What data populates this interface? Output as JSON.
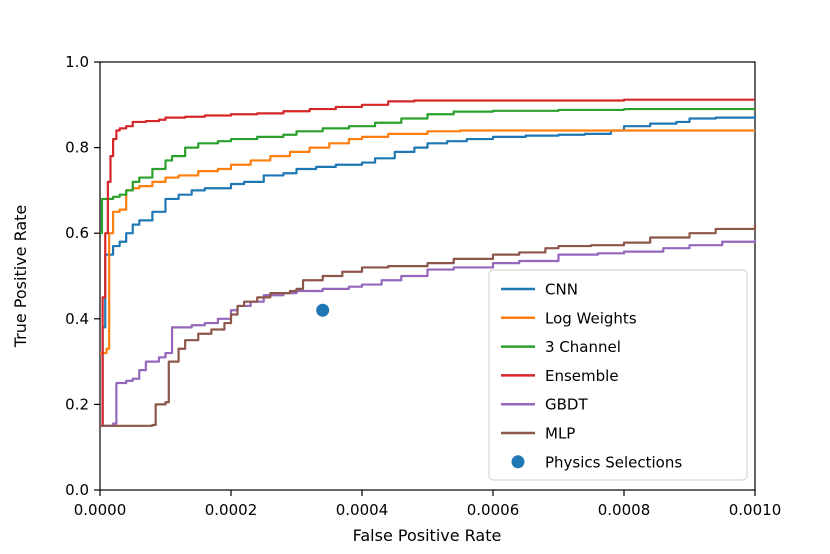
{
  "figure": {
    "background": "#ffffff"
  },
  "chart_data": {
    "type": "line",
    "title": "",
    "xlabel": "False Positive Rate",
    "ylabel": "True Positive Rate",
    "xlim": [
      0.0,
      0.001
    ],
    "ylim": [
      0.0,
      1.0
    ],
    "grid": false,
    "legend_position": "lower right",
    "xticks": {
      "values": [
        0.0,
        0.0002,
        0.0004,
        0.0006,
        0.0008,
        0.001
      ],
      "labels": [
        "0.0000",
        "0.0002",
        "0.0004",
        "0.0006",
        "0.0008",
        "0.0010"
      ]
    },
    "yticks": {
      "values": [
        0.0,
        0.2,
        0.4,
        0.6,
        0.8,
        1.0
      ],
      "labels": [
        "0.0",
        "0.2",
        "0.4",
        "0.6",
        "0.8",
        "1.0"
      ]
    },
    "series": [
      {
        "name": "CNN",
        "color": "#1f77b4",
        "step": true,
        "points": [
          [
            0,
            0.15
          ],
          [
            4e-06,
            0.38
          ],
          [
            8e-06,
            0.55
          ],
          [
            2e-05,
            0.57
          ],
          [
            3e-05,
            0.58
          ],
          [
            4e-05,
            0.6
          ],
          [
            5e-05,
            0.62
          ],
          [
            6e-05,
            0.63
          ],
          [
            8e-05,
            0.65
          ],
          [
            0.0001,
            0.68
          ],
          [
            0.00012,
            0.69
          ],
          [
            0.00014,
            0.7
          ],
          [
            0.00016,
            0.705
          ],
          [
            0.0002,
            0.715
          ],
          [
            0.00022,
            0.72
          ],
          [
            0.00025,
            0.735
          ],
          [
            0.00028,
            0.74
          ],
          [
            0.0003,
            0.75
          ],
          [
            0.00033,
            0.755
          ],
          [
            0.00036,
            0.76
          ],
          [
            0.0004,
            0.765
          ],
          [
            0.00042,
            0.775
          ],
          [
            0.00045,
            0.79
          ],
          [
            0.00048,
            0.8
          ],
          [
            0.0005,
            0.81
          ],
          [
            0.00053,
            0.815
          ],
          [
            0.00056,
            0.82
          ],
          [
            0.0006,
            0.825
          ],
          [
            0.00065,
            0.828
          ],
          [
            0.0007,
            0.83
          ],
          [
            0.00074,
            0.832
          ],
          [
            0.00078,
            0.84
          ],
          [
            0.0008,
            0.85
          ],
          [
            0.00084,
            0.856
          ],
          [
            0.00088,
            0.86
          ],
          [
            0.0009,
            0.868
          ],
          [
            0.00094,
            0.87
          ],
          [
            0.001,
            0.875
          ]
        ]
      },
      {
        "name": "Log Weights",
        "color": "#ff7f0e",
        "step": true,
        "points": [
          [
            0,
            0.32
          ],
          [
            1e-05,
            0.33
          ],
          [
            1.4e-05,
            0.6
          ],
          [
            2e-05,
            0.65
          ],
          [
            3e-05,
            0.655
          ],
          [
            4e-05,
            0.7
          ],
          [
            5e-05,
            0.705
          ],
          [
            6e-05,
            0.71
          ],
          [
            8e-05,
            0.72
          ],
          [
            0.0001,
            0.73
          ],
          [
            0.00012,
            0.735
          ],
          [
            0.00015,
            0.745
          ],
          [
            0.00018,
            0.75
          ],
          [
            0.0002,
            0.76
          ],
          [
            0.00023,
            0.77
          ],
          [
            0.00026,
            0.78
          ],
          [
            0.00029,
            0.79
          ],
          [
            0.00032,
            0.8
          ],
          [
            0.00035,
            0.81
          ],
          [
            0.00038,
            0.82
          ],
          [
            0.0004,
            0.825
          ],
          [
            0.00044,
            0.832
          ],
          [
            0.0005,
            0.838
          ],
          [
            0.00055,
            0.84
          ],
          [
            0.001,
            0.84
          ]
        ]
      },
      {
        "name": "3 Channel",
        "color": "#2ca02c",
        "step": true,
        "points": [
          [
            0,
            0.6
          ],
          [
            3e-06,
            0.68
          ],
          [
            2e-05,
            0.685
          ],
          [
            3e-05,
            0.69
          ],
          [
            4e-05,
            0.7
          ],
          [
            5e-05,
            0.72
          ],
          [
            6e-05,
            0.73
          ],
          [
            8e-05,
            0.75
          ],
          [
            0.0001,
            0.77
          ],
          [
            0.00011,
            0.78
          ],
          [
            0.00013,
            0.8
          ],
          [
            0.00015,
            0.81
          ],
          [
            0.00018,
            0.815
          ],
          [
            0.0002,
            0.82
          ],
          [
            0.00024,
            0.825
          ],
          [
            0.00028,
            0.83
          ],
          [
            0.0003,
            0.838
          ],
          [
            0.00034,
            0.845
          ],
          [
            0.00038,
            0.85
          ],
          [
            0.00042,
            0.858
          ],
          [
            0.00046,
            0.868
          ],
          [
            0.0005,
            0.878
          ],
          [
            0.00054,
            0.884
          ],
          [
            0.0006,
            0.886
          ],
          [
            0.0007,
            0.888
          ],
          [
            0.0008,
            0.89
          ],
          [
            0.001,
            0.89
          ]
        ]
      },
      {
        "name": "Ensemble",
        "color": "#d62728",
        "step": true,
        "points": [
          [
            0,
            0.15
          ],
          [
            4e-06,
            0.45
          ],
          [
            8e-06,
            0.6
          ],
          [
            1.2e-05,
            0.72
          ],
          [
            1.6e-05,
            0.78
          ],
          [
            2e-05,
            0.82
          ],
          [
            2.5e-05,
            0.84
          ],
          [
            3e-05,
            0.845
          ],
          [
            4e-05,
            0.85
          ],
          [
            5e-05,
            0.86
          ],
          [
            7e-05,
            0.862
          ],
          [
            9e-05,
            0.865
          ],
          [
            0.0001,
            0.87
          ],
          [
            0.00013,
            0.872
          ],
          [
            0.00016,
            0.875
          ],
          [
            0.0002,
            0.878
          ],
          [
            0.00024,
            0.88
          ],
          [
            0.00028,
            0.885
          ],
          [
            0.00032,
            0.89
          ],
          [
            0.00036,
            0.895
          ],
          [
            0.0004,
            0.9
          ],
          [
            0.00044,
            0.908
          ],
          [
            0.00048,
            0.91
          ],
          [
            0.0006,
            0.91
          ],
          [
            0.0008,
            0.912
          ],
          [
            0.001,
            0.912
          ]
        ]
      },
      {
        "name": "GBDT",
        "color": "#9467bd",
        "step": true,
        "points": [
          [
            0,
            0.15
          ],
          [
            2e-05,
            0.155
          ],
          [
            2.5e-05,
            0.25
          ],
          [
            4e-05,
            0.255
          ],
          [
            5e-05,
            0.26
          ],
          [
            6e-05,
            0.28
          ],
          [
            7e-05,
            0.3
          ],
          [
            9e-05,
            0.31
          ],
          [
            0.0001,
            0.32
          ],
          [
            0.00011,
            0.38
          ],
          [
            0.00014,
            0.385
          ],
          [
            0.00016,
            0.39
          ],
          [
            0.00018,
            0.4
          ],
          [
            0.0002,
            0.42
          ],
          [
            0.00021,
            0.43
          ],
          [
            0.00023,
            0.44
          ],
          [
            0.00025,
            0.455
          ],
          [
            0.00028,
            0.46
          ],
          [
            0.0003,
            0.465
          ],
          [
            0.00034,
            0.47
          ],
          [
            0.00038,
            0.475
          ],
          [
            0.0004,
            0.48
          ],
          [
            0.00043,
            0.49
          ],
          [
            0.00046,
            0.5
          ],
          [
            0.0005,
            0.515
          ],
          [
            0.00054,
            0.52
          ],
          [
            0.0006,
            0.53
          ],
          [
            0.00064,
            0.535
          ],
          [
            0.0007,
            0.55
          ],
          [
            0.00076,
            0.553
          ],
          [
            0.0008,
            0.557
          ],
          [
            0.00086,
            0.565
          ],
          [
            0.0009,
            0.572
          ],
          [
            0.00095,
            0.58
          ],
          [
            0.001,
            0.585
          ]
        ]
      },
      {
        "name": "MLP",
        "color": "#8c564b",
        "step": true,
        "points": [
          [
            0,
            0.15
          ],
          [
            8e-05,
            0.152
          ],
          [
            8.5e-05,
            0.2
          ],
          [
            0.0001,
            0.205
          ],
          [
            0.000105,
            0.3
          ],
          [
            0.00012,
            0.33
          ],
          [
            0.00013,
            0.35
          ],
          [
            0.00015,
            0.365
          ],
          [
            0.00017,
            0.375
          ],
          [
            0.00019,
            0.39
          ],
          [
            0.0002,
            0.41
          ],
          [
            0.00021,
            0.43
          ],
          [
            0.00022,
            0.44
          ],
          [
            0.00024,
            0.45
          ],
          [
            0.00026,
            0.46
          ],
          [
            0.00029,
            0.465
          ],
          [
            0.0003,
            0.47
          ],
          [
            0.00031,
            0.49
          ],
          [
            0.00034,
            0.5
          ],
          [
            0.00037,
            0.51
          ],
          [
            0.0004,
            0.52
          ],
          [
            0.00044,
            0.523
          ],
          [
            0.0005,
            0.53
          ],
          [
            0.00054,
            0.54
          ],
          [
            0.0006,
            0.55
          ],
          [
            0.00064,
            0.555
          ],
          [
            0.00068,
            0.565
          ],
          [
            0.0007,
            0.57
          ],
          [
            0.00075,
            0.572
          ],
          [
            0.0008,
            0.578
          ],
          [
            0.00084,
            0.59
          ],
          [
            0.0009,
            0.6
          ],
          [
            0.00094,
            0.61
          ],
          [
            0.001,
            0.62
          ]
        ]
      }
    ],
    "scatter": [
      {
        "name": "Physics Selections",
        "color": "#1f77b4",
        "marker": "circle",
        "x": 0.00034,
        "y": 0.42
      }
    ],
    "legend_edge_color": "#cccccc",
    "axis_color": "#000000"
  }
}
